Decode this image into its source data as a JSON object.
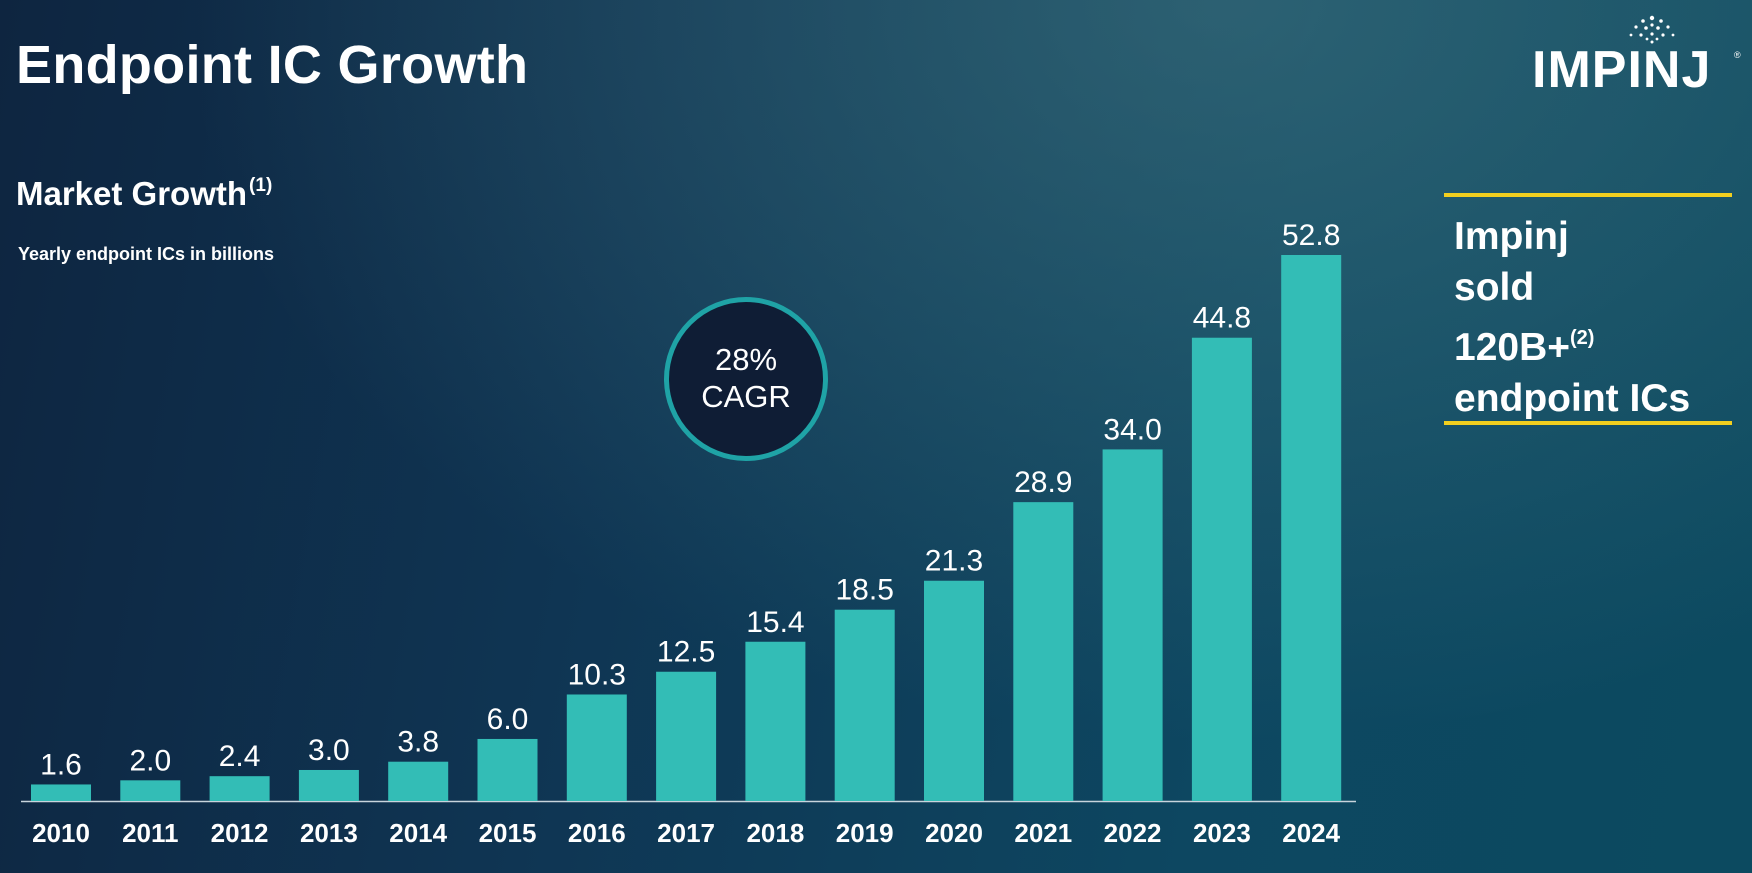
{
  "header": {
    "title": "Endpoint IC Growth",
    "logo_text": "IMPINJ",
    "logo_mark": "®"
  },
  "chart_section": {
    "subtitle": "Market Growth",
    "subtitle_note": "(1)",
    "unit_label": "Yearly endpoint ICs in billions"
  },
  "cagr_badge": {
    "value": "28%",
    "label": "CAGR"
  },
  "callout": {
    "line1": "Impinj",
    "line2": "sold",
    "line3": "120B+",
    "line3_note": "(2)",
    "line4": "endpoint ICs",
    "rule_color": "#f2cf1f"
  },
  "chart_data": {
    "type": "bar",
    "categories": [
      "2010",
      "2011",
      "2012",
      "2013",
      "2014",
      "2015",
      "2016",
      "2017",
      "2018",
      "2019",
      "2020",
      "2021",
      "2022",
      "2023",
      "2024"
    ],
    "values": [
      1.6,
      2.0,
      2.4,
      3.0,
      3.8,
      6.0,
      10.3,
      12.5,
      15.4,
      18.5,
      21.3,
      28.9,
      34.0,
      44.8,
      52.8
    ],
    "labels": [
      "1.6",
      "2.0",
      "2.4",
      "3.0",
      "3.8",
      "6.0",
      "10.3",
      "12.5",
      "15.4",
      "18.5",
      "21.3",
      "28.9",
      "34.0",
      "44.8",
      "52.8"
    ],
    "bar_color": "#33bdb6",
    "ylim": [
      0,
      52.8
    ],
    "grid": false,
    "legend": "none"
  }
}
